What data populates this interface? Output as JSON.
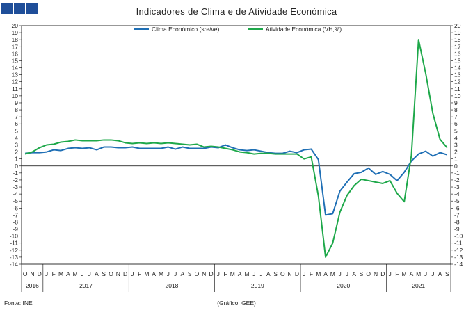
{
  "title": "Indicadores de Clima e de Atividade Económica",
  "source": "Fonte: INE",
  "credit": "(Gráfico: GEE)",
  "colors": {
    "brand": "#1f4e99"
  },
  "chart_data": {
    "type": "line",
    "title": "Indicadores de Clima e de Atividade Económica",
    "ylim": [
      -14,
      20
    ],
    "y_ticks": [
      20,
      19,
      18,
      17,
      16,
      15,
      14,
      13,
      12,
      11,
      10,
      9,
      8,
      7,
      6,
      5,
      4,
      3,
      2,
      1,
      0,
      -1,
      -2,
      -3,
      -4,
      -5,
      -6,
      -7,
      -8,
      -9,
      -10,
      -11,
      -12,
      -13,
      -14
    ],
    "month_labels": [
      "O",
      "N",
      "D",
      "J",
      "F",
      "M",
      "A",
      "M",
      "J",
      "J",
      "A",
      "S",
      "O",
      "N",
      "D",
      "J",
      "F",
      "M",
      "A",
      "M",
      "J",
      "J",
      "A",
      "S",
      "O",
      "N",
      "D",
      "J",
      "F",
      "M",
      "A",
      "M",
      "J",
      "J",
      "A",
      "S",
      "O",
      "N",
      "D",
      "J",
      "F",
      "M",
      "A",
      "M",
      "J",
      "J",
      "A",
      "S",
      "O",
      "N",
      "D",
      "J",
      "F",
      "M",
      "A",
      "M",
      "J",
      "J",
      "A",
      "S"
    ],
    "year_labels": [
      {
        "label": "2016",
        "start": 0,
        "end": 3
      },
      {
        "label": "2017",
        "start": 3,
        "end": 15
      },
      {
        "label": "2018",
        "start": 15,
        "end": 27
      },
      {
        "label": "2019",
        "start": 27,
        "end": 39
      },
      {
        "label": "2020",
        "start": 39,
        "end": 51
      },
      {
        "label": "2021",
        "start": 51,
        "end": 60
      }
    ],
    "legend_position": "top",
    "series": [
      {
        "name": "Clima Económico (sre/ve)",
        "color": "#1f6fb5",
        "values": [
          1.8,
          1.9,
          1.9,
          2.0,
          2.3,
          2.2,
          2.5,
          2.6,
          2.5,
          2.6,
          2.3,
          2.7,
          2.7,
          2.6,
          2.6,
          2.7,
          2.5,
          2.5,
          2.5,
          2.5,
          2.7,
          2.4,
          2.7,
          2.5,
          2.5,
          2.5,
          2.7,
          2.6,
          3.0,
          2.6,
          2.3,
          2.2,
          2.3,
          2.1,
          1.9,
          1.8,
          1.8,
          2.1,
          1.9,
          2.3,
          2.4,
          0.9,
          -7.0,
          -6.8,
          -3.6,
          -2.3,
          -1.1,
          -0.9,
          -0.3,
          -1.2,
          -0.8,
          -1.2,
          -2.1,
          -0.9,
          0.7,
          1.7,
          2.1,
          1.4,
          1.9,
          1.6
        ]
      },
      {
        "name": "Atividade Económica (VH,%)",
        "color": "#1ea84a",
        "values": [
          1.7,
          2.0,
          2.6,
          3.0,
          3.1,
          3.4,
          3.5,
          3.7,
          3.6,
          3.6,
          3.6,
          3.7,
          3.7,
          3.6,
          3.3,
          3.2,
          3.3,
          3.2,
          3.3,
          3.2,
          3.3,
          3.2,
          3.1,
          3.0,
          3.1,
          2.7,
          2.8,
          2.7,
          2.5,
          2.3,
          2.0,
          1.9,
          1.7,
          1.8,
          1.8,
          1.7,
          1.7,
          1.7,
          1.7,
          1.0,
          1.3,
          -4.3,
          -13.0,
          -11.0,
          -6.6,
          -4.2,
          -2.8,
          -1.9,
          -2.1,
          -2.3,
          -2.5,
          -2.1,
          -3.9,
          -5.1,
          1.5,
          18.0,
          13.2,
          7.5,
          3.8,
          2.6
        ]
      }
    ]
  }
}
